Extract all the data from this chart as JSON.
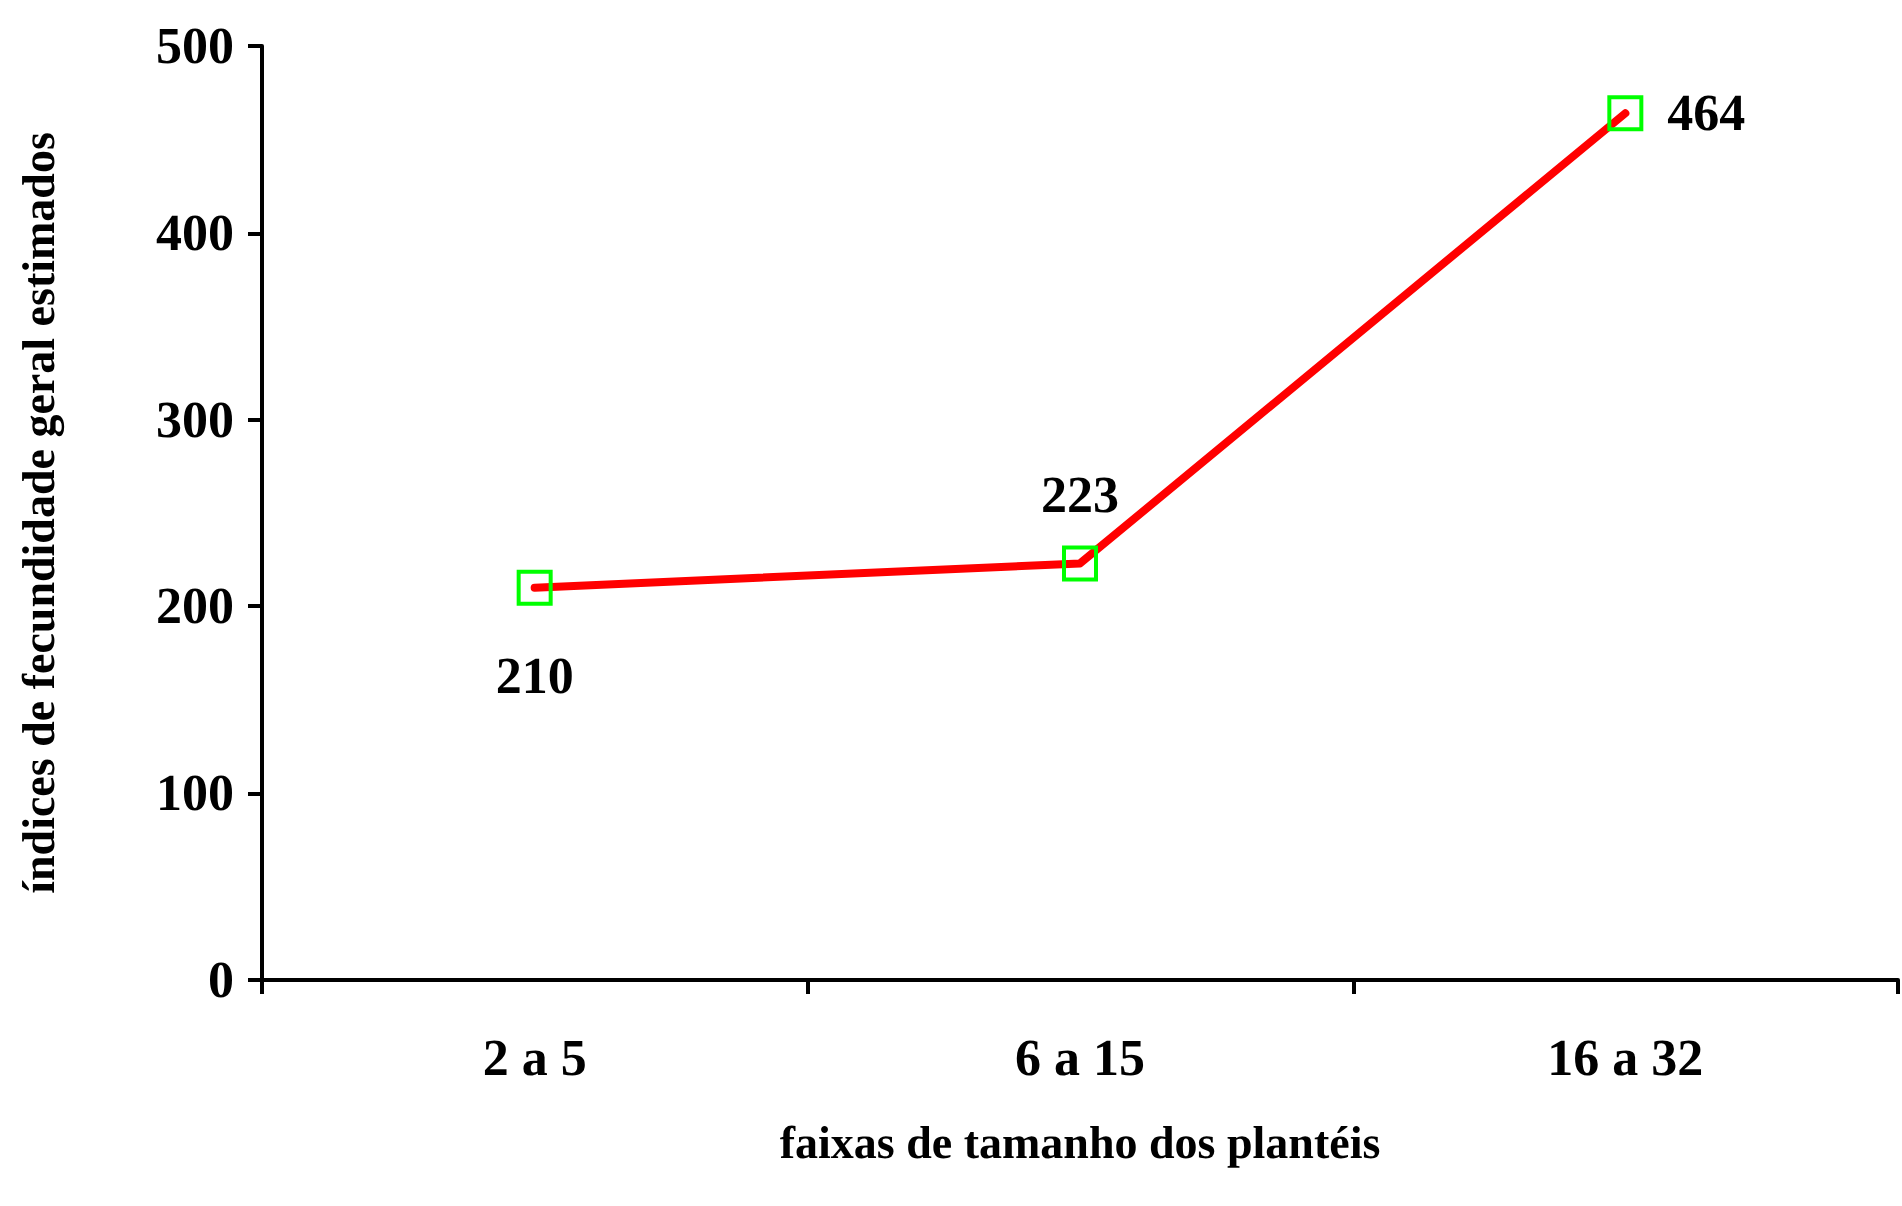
{
  "chart_data": {
    "type": "line",
    "xlabel": "faixas de tamanho dos plantéis",
    "ylabel": "índices de fecundidade geral estimados",
    "categories": [
      "2 a 5",
      "6 a 15",
      "16 a 32"
    ],
    "series": [
      {
        "color": "#ff0000",
        "values": [
          210,
          223,
          464
        ]
      }
    ],
    "ylim": [
      0,
      500
    ],
    "yticks": [
      0,
      100,
      200,
      300,
      400,
      500
    ],
    "marker": "square",
    "line_style": "solid",
    "data_labels": true,
    "grid": false
  }
}
